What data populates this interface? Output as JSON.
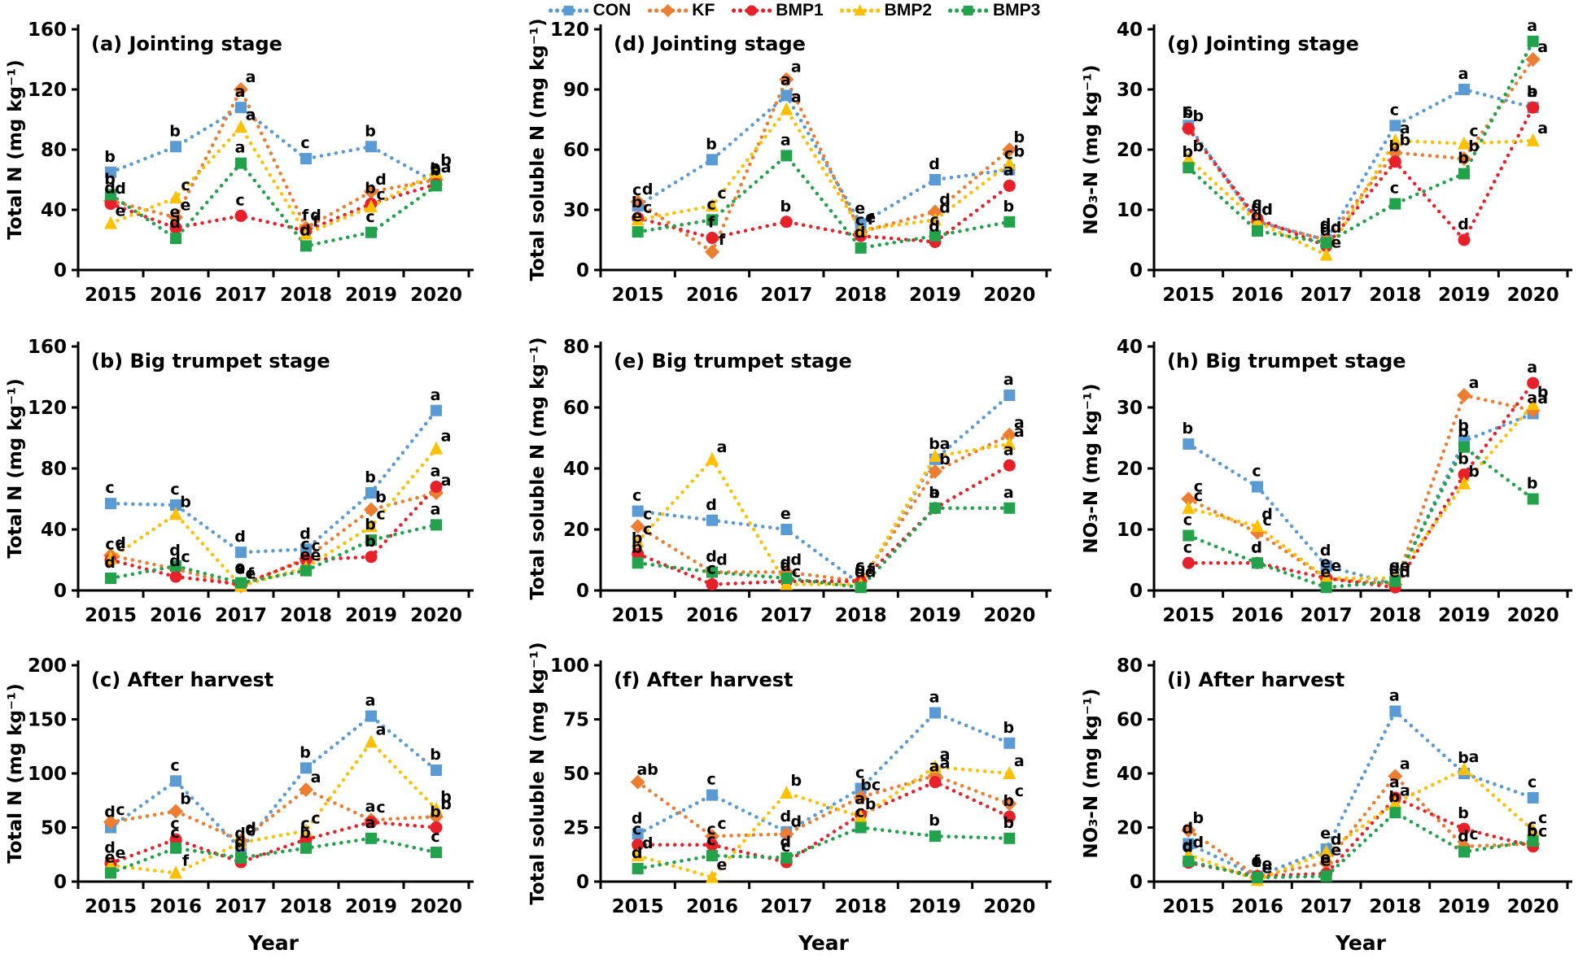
{
  "legend": {
    "items": [
      {
        "label": "CON",
        "color": "#5B9BD5",
        "shape": "square"
      },
      {
        "label": "KF",
        "color": "#ED7D31",
        "shape": "diamond"
      },
      {
        "label": "BMP1",
        "color": "#E8202A",
        "shape": "circle"
      },
      {
        "label": "BMP2",
        "color": "#FFC000",
        "shape": "triangle"
      },
      {
        "label": "BMP3",
        "color": "#21A24B",
        "shape": "square"
      }
    ]
  },
  "chart_data": [
    {
      "id": "a",
      "panel_label": "(a) Jointing stage",
      "type": "line",
      "ylabel": "Total N (mg kg⁻¹)",
      "x_title": "",
      "x": [
        "2015",
        "2016",
        "2017",
        "2018",
        "2019",
        "2020"
      ],
      "ylim": [
        0,
        160
      ],
      "yticks": [
        0,
        40,
        80,
        120,
        160
      ],
      "grid": false,
      "series": [
        {
          "name": "CON",
          "values": [
            65,
            82,
            108,
            74,
            82,
            58
          ],
          "letters": [
            "b",
            "b",
            "a",
            "c",
            "b",
            "e"
          ]
        },
        {
          "name": "KF",
          "values": [
            46,
            35,
            120,
            28,
            52,
            60
          ],
          "letters": [
            "d",
            "e",
            "a",
            "d",
            "d",
            "a"
          ]
        },
        {
          "name": "BMP1",
          "values": [
            44,
            28,
            36,
            26,
            44,
            57
          ],
          "letters": [
            "d",
            "e",
            "c",
            "f",
            "b",
            "b"
          ]
        },
        {
          "name": "BMP2",
          "values": [
            31,
            48,
            95,
            24,
            42,
            65
          ],
          "letters": [
            "e",
            "c",
            "a",
            "f",
            "c",
            "b"
          ]
        },
        {
          "name": "BMP3",
          "values": [
            50,
            21,
            71,
            16,
            25,
            56
          ],
          "letters": [
            "b",
            "d",
            "a",
            "d",
            "c",
            "b"
          ]
        }
      ]
    },
    {
      "id": "d",
      "panel_label": "(d) Jointing stage",
      "type": "line",
      "ylabel": "Total soluble N (mg kg⁻¹)",
      "x_title": "",
      "x": [
        "2015",
        "2016",
        "2017",
        "2018",
        "2019",
        "2020"
      ],
      "ylim": [
        0,
        120
      ],
      "yticks": [
        0,
        30,
        60,
        90,
        120
      ],
      "grid": false,
      "series": [
        {
          "name": "CON",
          "values": [
            32,
            55,
            87,
            23,
            45,
            50
          ],
          "letters": [
            "c",
            "b",
            "a",
            "e",
            "d",
            "c"
          ]
        },
        {
          "name": "KF",
          "values": [
            34,
            9,
            95,
            19,
            29,
            60
          ],
          "letters": [
            "d",
            "f",
            "a",
            "f",
            "d",
            "b"
          ]
        },
        {
          "name": "BMP1",
          "values": [
            26,
            16,
            24,
            17,
            14,
            42
          ],
          "letters": [
            "b",
            "f",
            "b",
            "c",
            "d",
            "a"
          ]
        },
        {
          "name": "BMP2",
          "values": [
            25,
            32,
            80,
            20,
            25,
            53
          ],
          "letters": [
            "c",
            "c",
            "a",
            "e",
            "d",
            "b"
          ]
        },
        {
          "name": "BMP3",
          "values": [
            19,
            25,
            57,
            11,
            17,
            24
          ],
          "letters": [
            "e",
            "c",
            "a",
            "d",
            "c",
            "b"
          ]
        }
      ]
    },
    {
      "id": "g",
      "panel_label": "(g) Jointing stage",
      "type": "line",
      "ylabel": "NO₃-N (mg kg⁻¹)",
      "x_title": "",
      "x": [
        "2015",
        "2016",
        "2017",
        "2018",
        "2019",
        "2020"
      ],
      "ylim": [
        0,
        40
      ],
      "yticks": [
        0,
        10,
        20,
        30,
        40
      ],
      "grid": false,
      "series": [
        {
          "name": "CON",
          "values": [
            24,
            8,
            5,
            24,
            30,
            27
          ],
          "letters": [
            "c",
            "d",
            "d",
            "c",
            "a",
            "b"
          ]
        },
        {
          "name": "KF",
          "values": [
            23.5,
            8,
            5,
            19.5,
            18.5,
            35
          ],
          "letters": [
            "b",
            "d",
            "d",
            "b",
            "b",
            "a"
          ]
        },
        {
          "name": "BMP1",
          "values": [
            23.5,
            8.5,
            4,
            18,
            5,
            27
          ],
          "letters": [
            "b",
            "c",
            "d",
            "b",
            "d",
            "a"
          ]
        },
        {
          "name": "BMP2",
          "values": [
            18.5,
            8,
            2.5,
            21.5,
            21,
            21.5
          ],
          "letters": [
            "b",
            "d",
            "e",
            "a",
            "c",
            "a"
          ]
        },
        {
          "name": "BMP3",
          "values": [
            17,
            6.5,
            4.5,
            11,
            16,
            38
          ],
          "letters": [
            "b",
            "d",
            "d",
            "c",
            "b",
            "a"
          ]
        }
      ]
    },
    {
      "id": "b",
      "panel_label": "(b) Big trumpet stage",
      "type": "line",
      "ylabel": "Total N (mg kg⁻¹)",
      "x_title": "",
      "x": [
        "2015",
        "2016",
        "2017",
        "2018",
        "2019",
        "2020"
      ],
      "ylim": [
        0,
        160
      ],
      "yticks": [
        0,
        40,
        80,
        120,
        160
      ],
      "grid": false,
      "series": [
        {
          "name": "CON",
          "values": [
            57,
            56,
            25,
            27,
            64,
            118
          ],
          "letters": [
            "c",
            "c",
            "d",
            "d",
            "b",
            "a"
          ]
        },
        {
          "name": "KF",
          "values": [
            23,
            14,
            3,
            21,
            53,
            64
          ],
          "letters": [
            "d",
            "c",
            "e",
            "c",
            "b",
            "a"
          ]
        },
        {
          "name": "BMP1",
          "values": [
            20,
            9,
            4,
            20,
            22,
            68
          ],
          "letters": [
            "c",
            "d",
            "e",
            "c",
            "b",
            "a"
          ]
        },
        {
          "name": "BMP2",
          "values": [
            21,
            50,
            3,
            15,
            42,
            93
          ],
          "letters": [
            "c",
            "b",
            "f",
            "e",
            "c",
            "a"
          ]
        },
        {
          "name": "BMP3",
          "values": [
            8,
            16,
            5,
            13,
            33,
            43
          ],
          "letters": [
            "d",
            "d",
            "e",
            "e",
            "b",
            "a"
          ]
        }
      ]
    },
    {
      "id": "e",
      "panel_label": "(e) Big trumpet stage",
      "type": "line",
      "ylabel": "Total soluble N (mg kg⁻¹)",
      "x_title": "",
      "x": [
        "2015",
        "2016",
        "2017",
        "2018",
        "2019",
        "2020"
      ],
      "ylim": [
        0,
        80
      ],
      "yticks": [
        0,
        20,
        40,
        60,
        80
      ],
      "grid": false,
      "series": [
        {
          "name": "CON",
          "values": [
            26,
            23,
            20,
            2,
            43,
            64
          ],
          "letters": [
            "c",
            "d",
            "e",
            "e",
            "b",
            "a"
          ]
        },
        {
          "name": "KF",
          "values": [
            21,
            6,
            6,
            3,
            39,
            51
          ],
          "letters": [
            "c",
            "d",
            "d",
            "f",
            "b",
            "a"
          ]
        },
        {
          "name": "BMP1",
          "values": [
            12,
            2,
            3,
            3,
            27,
            41
          ],
          "letters": [
            "b",
            "c",
            "d",
            "c",
            "b",
            "a"
          ]
        },
        {
          "name": "BMP2",
          "values": [
            16,
            43,
            2,
            2,
            44,
            48
          ],
          "letters": [
            "c",
            "a",
            "c",
            "d",
            "a",
            "a"
          ]
        },
        {
          "name": "BMP3",
          "values": [
            9,
            6,
            4,
            1,
            27,
            27
          ],
          "letters": [
            "b",
            "d",
            "d",
            "d",
            "a",
            "a"
          ]
        }
      ]
    },
    {
      "id": "h",
      "panel_label": "(h) Big trumpet stage",
      "type": "line",
      "ylabel": "NO₃-N (mg kg⁻¹)",
      "x_title": "",
      "x": [
        "2015",
        "2016",
        "2017",
        "2018",
        "2019",
        "2020"
      ],
      "ylim": [
        0,
        40
      ],
      "yticks": [
        0,
        10,
        20,
        30,
        40
      ],
      "grid": false,
      "series": [
        {
          "name": "CON",
          "values": [
            24,
            17,
            4,
            1,
            24.5,
            29
          ],
          "letters": [
            "b",
            "c",
            "d",
            "d",
            "b",
            "a"
          ]
        },
        {
          "name": "KF",
          "values": [
            15,
            9.5,
            2,
            1,
            32,
            29.5
          ],
          "letters": [
            "c",
            "c",
            "e",
            "d",
            "a",
            "a"
          ]
        },
        {
          "name": "BMP1",
          "values": [
            4.5,
            4.5,
            2,
            0.5,
            19,
            34
          ],
          "letters": [
            "c",
            "d",
            "e",
            "e",
            "b",
            "a"
          ]
        },
        {
          "name": "BMP2",
          "values": [
            13.5,
            10.5,
            2,
            2,
            17.5,
            30.5
          ],
          "letters": [
            "c",
            "d",
            "e",
            "e",
            "b",
            "b"
          ]
        },
        {
          "name": "BMP3",
          "values": [
            9,
            4.5,
            0.5,
            1.5,
            23.5,
            15
          ],
          "letters": [
            "c",
            "d",
            "e",
            "e",
            "b",
            "b"
          ]
        }
      ]
    },
    {
      "id": "c",
      "panel_label": "(c) After harvest",
      "type": "line",
      "ylabel": "Total N (mg kg⁻¹)",
      "x_title": "Year",
      "x": [
        "2015",
        "2016",
        "2017",
        "2018",
        "2019",
        "2020"
      ],
      "ylim": [
        0,
        200
      ],
      "yticks": [
        0,
        50,
        100,
        150,
        200
      ],
      "grid": false,
      "series": [
        {
          "name": "CON",
          "values": [
            50,
            93,
            30,
            105,
            153,
            103
          ],
          "letters": [
            "d",
            "c",
            "d",
            "b",
            "a",
            "b"
          ]
        },
        {
          "name": "KF",
          "values": [
            55,
            65,
            38,
            85,
            57,
            60
          ],
          "letters": [
            "c",
            "b",
            "d",
            "a",
            "c",
            "b"
          ]
        },
        {
          "name": "BMP1",
          "values": [
            17,
            39,
            18,
            39,
            55,
            50
          ],
          "letters": [
            "d",
            "c",
            "d",
            "c",
            "a",
            "b"
          ]
        },
        {
          "name": "BMP2",
          "values": [
            15,
            8,
            36,
            47,
            129,
            67
          ],
          "letters": [
            "e",
            "f",
            "e",
            "c",
            "a",
            "b"
          ]
        },
        {
          "name": "BMP3",
          "values": [
            8,
            31,
            22,
            31,
            40,
            27
          ],
          "letters": [
            "e",
            "c",
            "d",
            "b",
            "a",
            "c"
          ]
        }
      ]
    },
    {
      "id": "f",
      "panel_label": "(f) After harvest",
      "type": "line",
      "ylabel": "Total soluble N (mg kg⁻¹)",
      "x_title": "Year",
      "x": [
        "2015",
        "2016",
        "2017",
        "2018",
        "2019",
        "2020"
      ],
      "ylim": [
        0,
        100
      ],
      "yticks": [
        0,
        25,
        50,
        75,
        100
      ],
      "grid": false,
      "series": [
        {
          "name": "CON",
          "values": [
            22,
            40,
            23,
            43,
            78,
            64
          ],
          "letters": [
            "d",
            "c",
            "d",
            "c",
            "a",
            "b"
          ]
        },
        {
          "name": "KF",
          "values": [
            46,
            21,
            22,
            39,
            49,
            36
          ],
          "letters": [
            "ab",
            "c",
            "d",
            "bc",
            "a",
            "c"
          ]
        },
        {
          "name": "BMP1",
          "values": [
            17,
            17,
            9,
            31,
            46,
            30
          ],
          "letters": [
            "c",
            "c",
            "c",
            "a",
            "a",
            "b"
          ]
        },
        {
          "name": "BMP2",
          "values": [
            12,
            2,
            41,
            30,
            53,
            50
          ],
          "letters": [
            "d",
            "e",
            "b",
            "b",
            "a",
            "a"
          ]
        },
        {
          "name": "BMP3",
          "values": [
            6,
            12,
            11,
            25,
            21,
            20
          ],
          "letters": [
            "d",
            "c",
            "d",
            "c",
            "b",
            "b"
          ]
        }
      ]
    },
    {
      "id": "i",
      "panel_label": "(i) After harvest",
      "type": "line",
      "ylabel": "NO₃-N (mg kg⁻¹)",
      "x_title": "Year",
      "x": [
        "2015",
        "2016",
        "2017",
        "2018",
        "2019",
        "2020"
      ],
      "ylim": [
        0,
        80
      ],
      "yticks": [
        0,
        20,
        40,
        60,
        80
      ],
      "grid": false,
      "series": [
        {
          "name": "CON",
          "values": [
            14,
            2,
            12,
            63,
            40,
            31
          ],
          "letters": [
            "d",
            "e",
            "e",
            "a",
            "b",
            "c"
          ]
        },
        {
          "name": "KF",
          "values": [
            19,
            2,
            7,
            39,
            13,
            14
          ],
          "letters": [
            "b",
            "e",
            "e",
            "a",
            "c",
            "c"
          ]
        },
        {
          "name": "BMP1",
          "values": [
            7,
            2,
            3,
            31,
            19.5,
            13
          ],
          "letters": [
            "d",
            "f",
            "e",
            "a",
            "b",
            "b"
          ]
        },
        {
          "name": "BMP2",
          "values": [
            10,
            0.5,
            11,
            29,
            41.5,
            19
          ],
          "letters": [
            "d",
            "e",
            "d",
            "a",
            "a",
            "c"
          ]
        },
        {
          "name": "BMP3",
          "values": [
            7.5,
            1.5,
            2,
            25.5,
            11,
            15
          ],
          "letters": [
            "d",
            "e",
            "e",
            "b",
            "d",
            "c"
          ]
        }
      ]
    }
  ]
}
